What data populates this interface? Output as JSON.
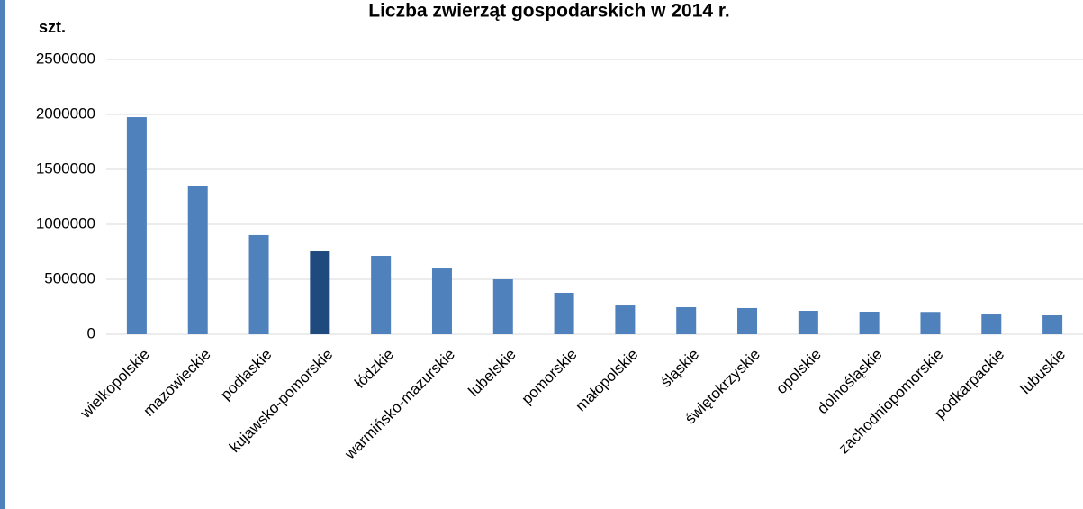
{
  "chart_data": {
    "type": "bar",
    "title": "Liczba zwierząt gospodarskich w 2014 r.",
    "y_label": "szt.",
    "categories": [
      "wielkopolskie",
      "mazowieckie",
      "podlaskie",
      "kujawsko-pomorskie",
      "łódzkie",
      "warmińsko-mazurskie",
      "lubelskie",
      "pomorskie",
      "małopolskie",
      "śląskie",
      "świętokrzyskie",
      "opolskie",
      "dolnośląskie",
      "zachodniopomorskie",
      "podkarpackie",
      "lubuskie"
    ],
    "values": [
      1975000,
      1352000,
      902000,
      754000,
      713000,
      598000,
      500000,
      377000,
      262000,
      246000,
      238000,
      213000,
      205000,
      203000,
      180000,
      172000
    ],
    "colors": [
      "#4f81bd",
      "#4f81bd",
      "#4f81bd",
      "#1f4a7e",
      "#4f81bd",
      "#4f81bd",
      "#4f81bd",
      "#4f81bd",
      "#4f81bd",
      "#4f81bd",
      "#4f81bd",
      "#4f81bd",
      "#4f81bd",
      "#4f81bd",
      "#4f81bd",
      "#4f81bd"
    ],
    "ylim": [
      0,
      2500000
    ],
    "yticks": [
      0,
      500000,
      1000000,
      1500000,
      2000000,
      2500000
    ],
    "grid": true
  }
}
